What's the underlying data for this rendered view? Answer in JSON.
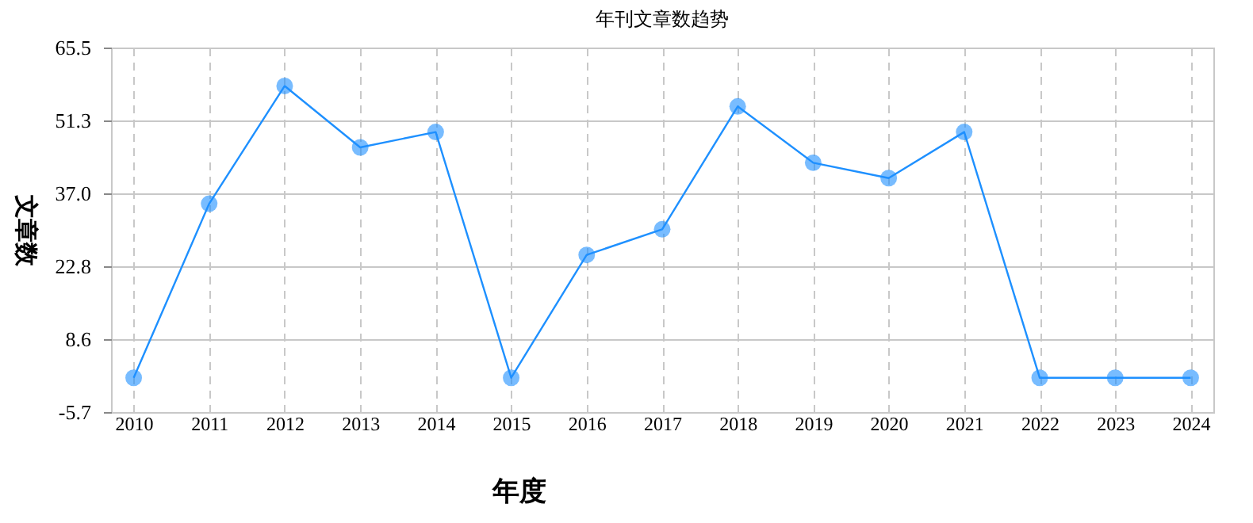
{
  "chart_data": {
    "type": "line",
    "title": "年刊文章数趋势",
    "xlabel": "年度",
    "ylabel": "文章数",
    "categories": [
      "2010",
      "2011",
      "2012",
      "2013",
      "2014",
      "2015",
      "2016",
      "2017",
      "2018",
      "2019",
      "2020",
      "2021",
      "2022",
      "2023",
      "2024"
    ],
    "series": [
      {
        "color": "#1e90ff",
        "values": [
          1,
          35,
          58,
          46,
          49,
          1,
          25,
          30,
          54,
          43,
          40,
          49,
          1,
          1,
          1
        ]
      }
    ],
    "ylim": [
      -5.7,
      65.5
    ],
    "yticks": [
      {
        "value": -5.7,
        "label": "-5.7"
      },
      {
        "value": 8.6,
        "label": "8.6"
      },
      {
        "value": 22.8,
        "label": "22.8"
      },
      {
        "value": 37,
        "label": "37.0"
      },
      {
        "value": 51.3,
        "label": "51.3"
      },
      {
        "value": 65.5,
        "label": "65.5"
      }
    ],
    "grid": true,
    "marker": "circle",
    "line_style": "solid"
  }
}
